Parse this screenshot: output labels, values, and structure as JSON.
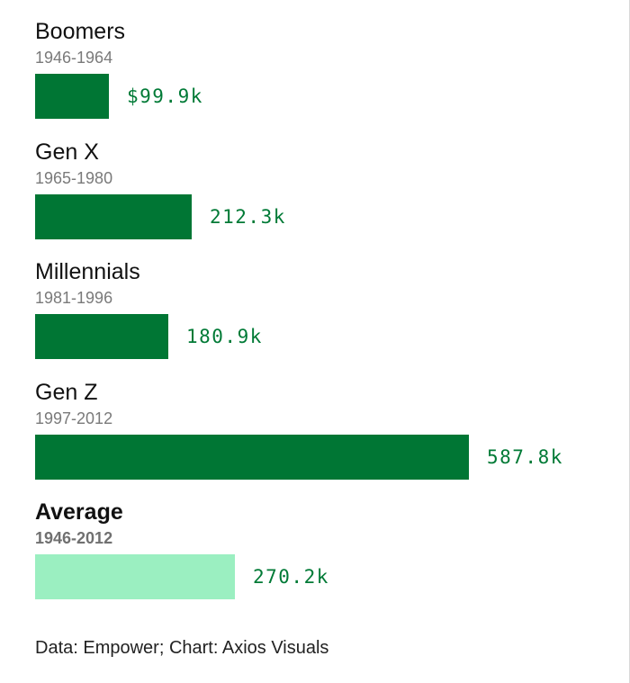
{
  "chart_data": {
    "type": "bar",
    "orientation": "horizontal",
    "title": "",
    "xlabel": "",
    "ylabel": "",
    "grid": false,
    "legend": "none",
    "xlim": [
      0,
      587.8
    ],
    "bars": [
      {
        "name": "Boomers",
        "years": "1946-1964",
        "value": 99.9,
        "label": "$99.9k",
        "highlight": false
      },
      {
        "name": "Gen X",
        "years": "1965-1980",
        "value": 212.3,
        "label": "212.3k",
        "highlight": false
      },
      {
        "name": "Millennials",
        "years": "1981-1996",
        "value": 180.9,
        "label": "180.9k",
        "highlight": false
      },
      {
        "name": "Gen Z",
        "years": "1997-2012",
        "value": 587.8,
        "label": "587.8k",
        "highlight": false
      },
      {
        "name": "Average",
        "years": "1946-2012",
        "value": 270.2,
        "label": "270.2k",
        "highlight": true
      }
    ]
  },
  "colors": {
    "bar": "#007634",
    "bar_highlight": "#9befc1",
    "value_text": "#007a36"
  },
  "source": "Data: Empower; Chart: Axios Visuals"
}
